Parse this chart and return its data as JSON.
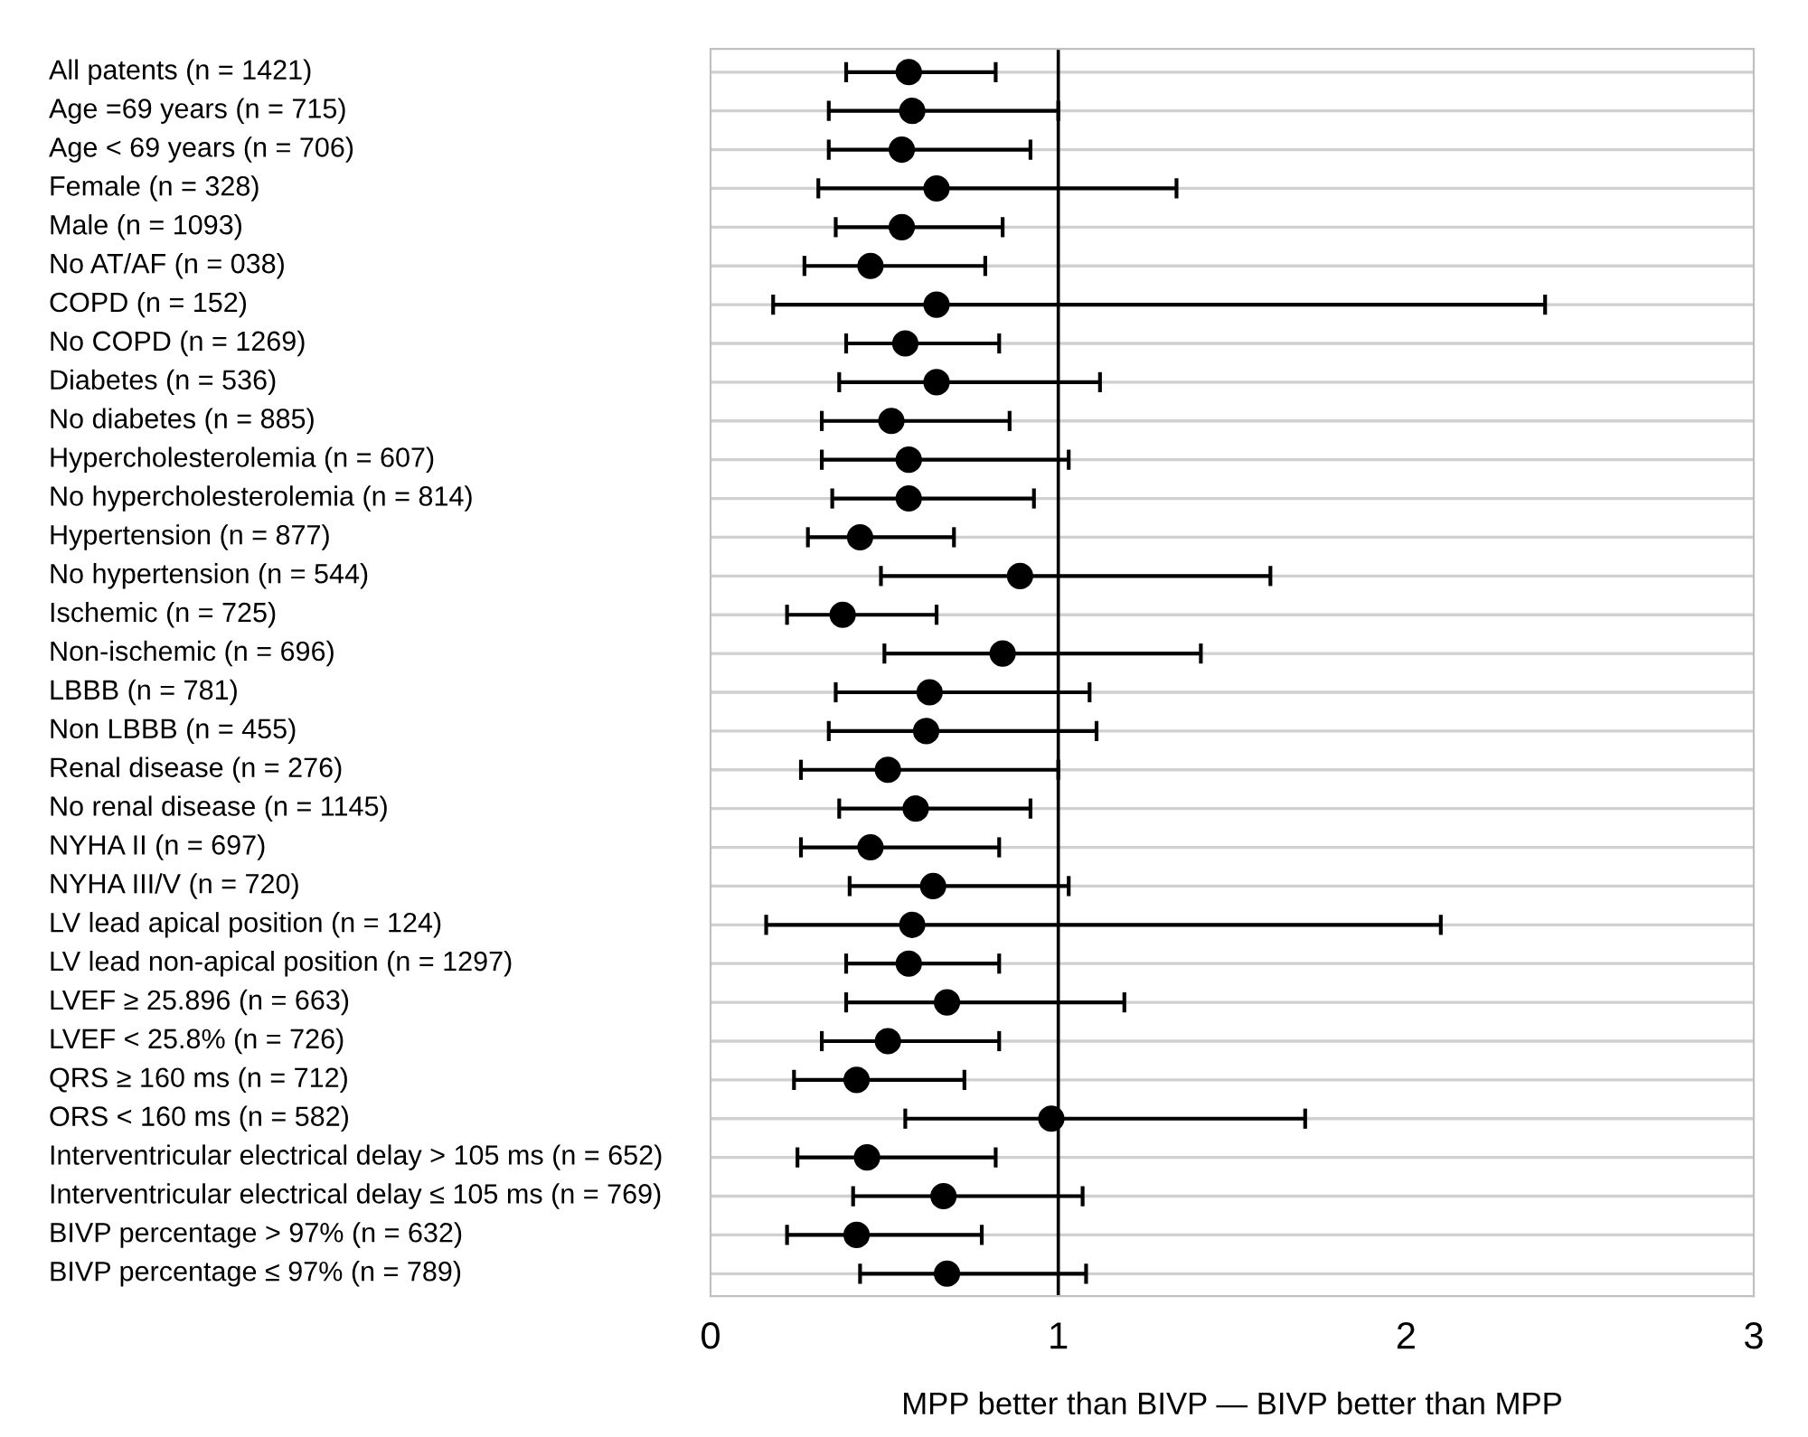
{
  "chart_data": {
    "type": "scatter",
    "orientation": "horizontal",
    "categories": [
      "All patents (n = 1421)",
      "Age =69 years (n = 715)",
      "Age < 69 years (n = 706)",
      "Female (n = 328)",
      "Male (n = 1093)",
      "No AT/AF (n = 038)",
      "COPD (n = 152)",
      "No COPD (n = 1269)",
      "Diabetes (n = 536)",
      "No diabetes (n = 885)",
      "Hypercholesterolemia (n = 607)",
      "No hypercholesterolemia (n = 814)",
      "Hypertension (n = 877)",
      "No hypertension (n = 544)",
      "Ischemic (n = 725)",
      "Non-ischemic (n = 696)",
      "LBBB (n = 781)",
      "Non LBBB (n = 455)",
      "Renal disease (n = 276)",
      "No renal disease (n = 1145)",
      "NYHA II (n = 697)",
      "NYHA III/V (n = 720)",
      "LV lead apical position (n = 124)",
      "LV lead non-apical position (n = 1297)",
      "LVEF ≥ 25.896 (n = 663)",
      "LVEF < 25.8% (n = 726)",
      "QRS ≥ 160 ms (n = 712)",
      "ORS < 160 ms (n = 582)",
      "Interventricular electrical delay > 105 ms (n = 652)",
      "Interventricular electrical delay ≤ 105 ms (n = 769)",
      "BIVP percentage > 97% (n = 632)",
      "BIVP percentage ≤ 97% (n = 789)"
    ],
    "values": [
      0.57,
      0.58,
      0.55,
      0.65,
      0.55,
      0.46,
      0.65,
      0.56,
      0.65,
      0.52,
      0.57,
      0.57,
      0.43,
      0.89,
      0.38,
      0.84,
      0.63,
      0.62,
      0.51,
      0.59,
      0.46,
      0.64,
      0.58,
      0.57,
      0.68,
      0.51,
      0.42,
      0.98,
      0.45,
      0.67,
      0.42,
      0.68
    ],
    "errors": [
      [
        0.39,
        0.82
      ],
      [
        0.34,
        1.0
      ],
      [
        0.34,
        0.92
      ],
      [
        0.31,
        1.34
      ],
      [
        0.36,
        0.84
      ],
      [
        0.27,
        0.79
      ],
      [
        0.18,
        2.4
      ],
      [
        0.39,
        0.83
      ],
      [
        0.37,
        1.12
      ],
      [
        0.32,
        0.86
      ],
      [
        0.32,
        1.03
      ],
      [
        0.35,
        0.93
      ],
      [
        0.28,
        0.7
      ],
      [
        0.49,
        1.61
      ],
      [
        0.22,
        0.65
      ],
      [
        0.5,
        1.41
      ],
      [
        0.36,
        1.09
      ],
      [
        0.34,
        1.11
      ],
      [
        0.26,
        1.0
      ],
      [
        0.37,
        0.92
      ],
      [
        0.26,
        0.83
      ],
      [
        0.4,
        1.03
      ],
      [
        0.16,
        2.1
      ],
      [
        0.39,
        0.83
      ],
      [
        0.39,
        1.19
      ],
      [
        0.32,
        0.83
      ],
      [
        0.24,
        0.73
      ],
      [
        0.56,
        1.71
      ],
      [
        0.25,
        0.82
      ],
      [
        0.41,
        1.07
      ],
      [
        0.22,
        0.78
      ],
      [
        0.43,
        1.08
      ]
    ],
    "color": "#000000",
    "marker": "circle",
    "xlim": [
      0,
      3
    ],
    "xticks": [
      0,
      1,
      2,
      3
    ],
    "xlabel": "MPP better than BIVP — BIVP better than MPP",
    "ref_lines": [
      {
        "axis": "x",
        "value": 1,
        "color": "#000000"
      }
    ],
    "grid": "y",
    "legend": false
  }
}
